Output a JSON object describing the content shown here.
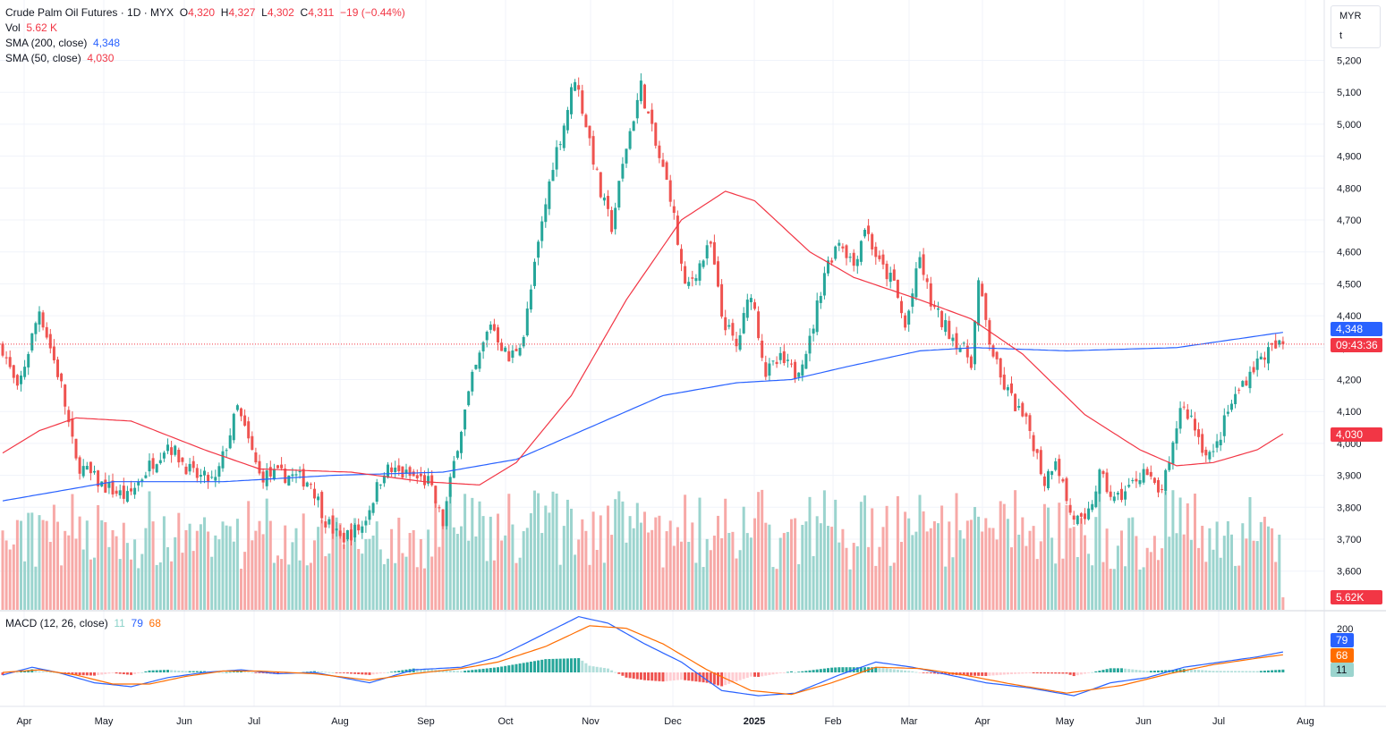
{
  "header": {
    "symbol": "Crude Palm Oil Futures · 1D · MYX",
    "o_label": "O",
    "o_value": "4,320",
    "h_label": "H",
    "h_value": "4,327",
    "l_label": "L",
    "l_value": "4,302",
    "c_label": "C",
    "c_value": "4,311",
    "change": "−19 (−0.44%)",
    "vol_label": "Vol",
    "vol_value": "5.62 K",
    "sma200_label": "SMA (200, close)",
    "sma200_value": "4,348",
    "sma50_label": "SMA (50, close)",
    "sma50_value": "4,030"
  },
  "macd_legend": {
    "label": "MACD (12, 26, close)",
    "hist": "11",
    "macd": "79",
    "signal": "68"
  },
  "currency": {
    "unit": "MYR",
    "mode": "t"
  },
  "tags": {
    "sma200": "4,348",
    "countdown": "09:43:36",
    "sma50": "4,030",
    "volume": "5.62K",
    "macd": "79",
    "signal": "68",
    "hist": "11"
  },
  "colors": {
    "up": "#26a69a",
    "down": "#ef5350",
    "vol_up": "#9bd4ce",
    "vol_down": "#f7a9a7",
    "sma200": "#2962ff",
    "sma50": "#f23645",
    "macd": "#2962ff",
    "signal": "#ff6d00",
    "hist_up": "#26a69a",
    "hist_down": "#ef5350"
  },
  "chart_data": {
    "type": "candlestick",
    "price_axis_ticks": [
      "5,200",
      "5,100",
      "5,000",
      "4,900",
      "4,800",
      "4,700",
      "4,600",
      "4,500",
      "4,400",
      "4,300",
      "4,200",
      "4,100",
      "4,000",
      "3,900",
      "3,800",
      "3,700",
      "3,600"
    ],
    "price_axis_range": [
      3560,
      5250
    ],
    "macd_axis_ticks": [
      "200"
    ],
    "time_axis_labels": [
      "Apr",
      "May",
      "Jun",
      "Jul",
      "Aug",
      "Sep",
      "Oct",
      "Nov",
      "Dec",
      "2025",
      "Feb",
      "Mar",
      "Apr",
      "May",
      "Jun",
      "Jul",
      "Aug"
    ],
    "last_price": 4311,
    "close_keypoints": [
      [
        0,
        4300
      ],
      [
        4,
        4160
      ],
      [
        10,
        4420
      ],
      [
        16,
        4180
      ],
      [
        20,
        3940
      ],
      [
        27,
        3870
      ],
      [
        34,
        3830
      ],
      [
        40,
        3930
      ],
      [
        45,
        4000
      ],
      [
        52,
        3900
      ],
      [
        58,
        3880
      ],
      [
        64,
        4110
      ],
      [
        70,
        3900
      ],
      [
        78,
        3900
      ],
      [
        84,
        3880
      ],
      [
        88,
        3760
      ],
      [
        92,
        3700
      ],
      [
        98,
        3740
      ],
      [
        104,
        3920
      ],
      [
        110,
        3900
      ],
      [
        116,
        3880
      ],
      [
        120,
        3750
      ],
      [
        124,
        4000
      ],
      [
        128,
        4200
      ],
      [
        133,
        4380
      ],
      [
        138,
        4260
      ],
      [
        142,
        4340
      ],
      [
        146,
        4620
      ],
      [
        150,
        4880
      ],
      [
        153,
        5000
      ],
      [
        156,
        5150
      ],
      [
        160,
        4950
      ],
      [
        163,
        4780
      ],
      [
        166,
        4680
      ],
      [
        170,
        4930
      ],
      [
        174,
        5120
      ],
      [
        178,
        4930
      ],
      [
        182,
        4780
      ],
      [
        186,
        4480
      ],
      [
        190,
        4560
      ],
      [
        193,
        4620
      ],
      [
        196,
        4400
      ],
      [
        200,
        4300
      ],
      [
        204,
        4480
      ],
      [
        208,
        4220
      ],
      [
        212,
        4260
      ],
      [
        216,
        4220
      ],
      [
        220,
        4320
      ],
      [
        224,
        4540
      ],
      [
        228,
        4640
      ],
      [
        232,
        4560
      ],
      [
        235,
        4680
      ],
      [
        239,
        4560
      ],
      [
        243,
        4500
      ],
      [
        246,
        4360
      ],
      [
        250,
        4580
      ],
      [
        253,
        4440
      ],
      [
        256,
        4380
      ],
      [
        260,
        4320
      ],
      [
        264,
        4260
      ],
      [
        266,
        4500
      ],
      [
        269,
        4320
      ],
      [
        272,
        4200
      ],
      [
        276,
        4120
      ],
      [
        280,
        4040
      ],
      [
        284,
        3880
      ],
      [
        287,
        3960
      ],
      [
        291,
        3780
      ],
      [
        295,
        3740
      ],
      [
        299,
        3900
      ],
      [
        303,
        3820
      ],
      [
        307,
        3860
      ],
      [
        311,
        3920
      ],
      [
        315,
        3840
      ],
      [
        318,
        3920
      ],
      [
        321,
        4120
      ],
      [
        324,
        4080
      ],
      [
        327,
        3990
      ],
      [
        330,
        3960
      ],
      [
        334,
        4100
      ],
      [
        338,
        4190
      ],
      [
        341,
        4240
      ],
      [
        344,
        4280
      ],
      [
        347,
        4300
      ],
      [
        349,
        4311
      ]
    ],
    "sma200_keypoints": [
      [
        0,
        3820
      ],
      [
        30,
        3880
      ],
      [
        60,
        3880
      ],
      [
        90,
        3900
      ],
      [
        120,
        3910
      ],
      [
        140,
        3950
      ],
      [
        160,
        4050
      ],
      [
        180,
        4150
      ],
      [
        200,
        4190
      ],
      [
        215,
        4200
      ],
      [
        230,
        4240
      ],
      [
        250,
        4290
      ],
      [
        265,
        4300
      ],
      [
        290,
        4290
      ],
      [
        320,
        4300
      ],
      [
        349,
        4348
      ]
    ],
    "sma50_keypoints": [
      [
        0,
        3970
      ],
      [
        10,
        4040
      ],
      [
        20,
        4080
      ],
      [
        35,
        4070
      ],
      [
        55,
        3980
      ],
      [
        70,
        3920
      ],
      [
        95,
        3910
      ],
      [
        115,
        3880
      ],
      [
        130,
        3870
      ],
      [
        140,
        3940
      ],
      [
        155,
        4150
      ],
      [
        170,
        4450
      ],
      [
        185,
        4700
      ],
      [
        197,
        4790
      ],
      [
        205,
        4760
      ],
      [
        220,
        4600
      ],
      [
        232,
        4520
      ],
      [
        250,
        4450
      ],
      [
        264,
        4390
      ],
      [
        278,
        4280
      ],
      [
        295,
        4090
      ],
      [
        310,
        3980
      ],
      [
        320,
        3930
      ],
      [
        330,
        3940
      ],
      [
        342,
        3980
      ],
      [
        349,
        4030
      ]
    ],
    "macd_keypoints": [
      [
        0,
        -10
      ],
      [
        8,
        20
      ],
      [
        15,
        0
      ],
      [
        25,
        -40
      ],
      [
        35,
        -55
      ],
      [
        45,
        -20
      ],
      [
        55,
        0
      ],
      [
        65,
        10
      ],
      [
        75,
        -5
      ],
      [
        85,
        0
      ],
      [
        100,
        -40
      ],
      [
        112,
        10
      ],
      [
        125,
        20
      ],
      [
        135,
        60
      ],
      [
        145,
        130
      ],
      [
        157,
        215
      ],
      [
        165,
        190
      ],
      [
        175,
        110
      ],
      [
        185,
        40
      ],
      [
        196,
        -70
      ],
      [
        206,
        -90
      ],
      [
        216,
        -80
      ],
      [
        228,
        -10
      ],
      [
        238,
        40
      ],
      [
        248,
        20
      ],
      [
        258,
        -10
      ],
      [
        268,
        -40
      ],
      [
        280,
        -60
      ],
      [
        292,
        -90
      ],
      [
        302,
        -40
      ],
      [
        312,
        -20
      ],
      [
        322,
        20
      ],
      [
        332,
        40
      ],
      [
        342,
        60
      ],
      [
        349,
        79
      ]
    ],
    "signal_keypoints": [
      [
        0,
        0
      ],
      [
        10,
        10
      ],
      [
        20,
        -10
      ],
      [
        30,
        -45
      ],
      [
        40,
        -45
      ],
      [
        50,
        -15
      ],
      [
        60,
        5
      ],
      [
        70,
        5
      ],
      [
        85,
        -5
      ],
      [
        100,
        -30
      ],
      [
        112,
        -5
      ],
      [
        125,
        15
      ],
      [
        135,
        40
      ],
      [
        148,
        100
      ],
      [
        160,
        180
      ],
      [
        170,
        170
      ],
      [
        180,
        110
      ],
      [
        192,
        10
      ],
      [
        204,
        -70
      ],
      [
        215,
        -85
      ],
      [
        226,
        -40
      ],
      [
        238,
        20
      ],
      [
        250,
        15
      ],
      [
        262,
        -10
      ],
      [
        275,
        -45
      ],
      [
        290,
        -80
      ],
      [
        305,
        -50
      ],
      [
        318,
        -5
      ],
      [
        330,
        30
      ],
      [
        342,
        55
      ],
      [
        349,
        68
      ]
    ]
  }
}
